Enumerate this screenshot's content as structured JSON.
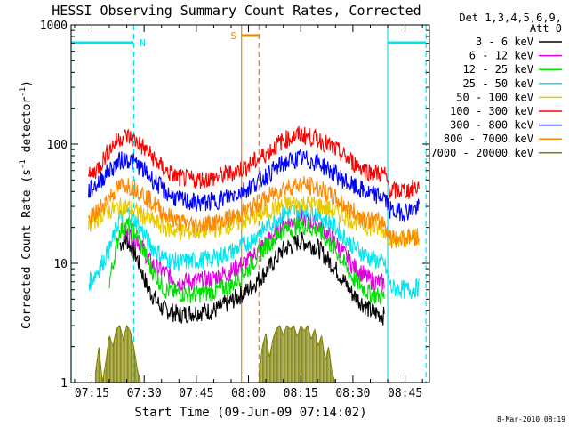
{
  "chart_data": {
    "type": "line",
    "title": "HESSI Observing Summary Count Rates, Corrected",
    "xlabel": "Start Time (09-Jun-09 07:14:02)",
    "ylabel_main": "Corrected Count Rate (s",
    "ylabel_sup1": "-1",
    "ylabel_mid": " detector",
    "ylabel_sup2": "-1",
    "ylabel_end": ")",
    "y_scale": "log",
    "ylim": [
      1,
      1000
    ],
    "xlim": [
      "07:09",
      "08:52"
    ],
    "x_ticks": [
      "07:15",
      "07:30",
      "07:45",
      "08:00",
      "08:15",
      "08:30",
      "08:45"
    ],
    "y_ticks": [
      "1",
      "10",
      "100",
      "1000"
    ],
    "legend_placement": "right",
    "legend_header": [
      "Det 1,3,4,5,6,9,",
      "Att 0"
    ],
    "footer_date": "8-Mar-2010 08:19",
    "markers": [
      {
        "label": "N",
        "solid": "07:09",
        "dashed": "07:27",
        "color": "#00e5ee"
      },
      {
        "label": "S",
        "solid": "07:58",
        "dashed": "08:03",
        "color": "#e08a00"
      },
      {
        "label": "",
        "solid": "08:40",
        "dashed": "08:51",
        "color": "#00e5ee"
      }
    ],
    "series": [
      {
        "name": "3 - 6 keV",
        "color": "#000000",
        "points": [
          [
            "07:23",
            14.5
          ],
          [
            "07:25",
            15.8
          ],
          [
            "07:28",
            11
          ],
          [
            "07:31",
            6.2
          ],
          [
            "07:35",
            4.2
          ],
          [
            "07:40",
            3.7
          ],
          [
            "07:45",
            3.9
          ],
          [
            "07:50",
            4.0
          ],
          [
            "07:55",
            4.8
          ],
          [
            "08:00",
            6.0
          ],
          [
            "08:05",
            8.5
          ],
          [
            "08:10",
            13
          ],
          [
            "08:15",
            15.5
          ],
          [
            "08:20",
            13.5
          ],
          [
            "08:25",
            9
          ],
          [
            "08:30",
            5.5
          ],
          [
            "08:35",
            4.0
          ],
          [
            "08:39",
            3.6
          ]
        ]
      },
      {
        "name": "6 - 12 keV",
        "color": "#e000e0",
        "points": [
          [
            "07:24",
            18
          ],
          [
            "07:28",
            16
          ],
          [
            "07:32",
            10
          ],
          [
            "07:40",
            7
          ],
          [
            "07:48",
            7.2
          ],
          [
            "07:55",
            8.6
          ],
          [
            "08:00",
            10.5
          ],
          [
            "08:05",
            15
          ],
          [
            "08:10",
            21
          ],
          [
            "08:15",
            24
          ],
          [
            "08:20",
            21
          ],
          [
            "08:25",
            15
          ],
          [
            "08:30",
            9.5
          ],
          [
            "08:35",
            7.2
          ],
          [
            "08:39",
            6.8
          ]
        ]
      },
      {
        "name": "12 - 25 keV",
        "color": "#00e000",
        "points": [
          [
            "07:20",
            7.0
          ],
          [
            "07:23",
            19
          ],
          [
            "07:25",
            21
          ],
          [
            "07:28",
            17
          ],
          [
            "07:32",
            9
          ],
          [
            "07:36",
            6.0
          ],
          [
            "07:40",
            5.6
          ],
          [
            "07:45",
            5.5
          ],
          [
            "07:50",
            5.8
          ],
          [
            "07:55",
            6.5
          ],
          [
            "08:00",
            9.0
          ],
          [
            "08:05",
            14
          ],
          [
            "08:10",
            19
          ],
          [
            "08:15",
            21
          ],
          [
            "08:20",
            19
          ],
          [
            "08:25",
            13
          ],
          [
            "08:30",
            7.5
          ],
          [
            "08:35",
            5.5
          ],
          [
            "08:39",
            5.2
          ]
        ]
      },
      {
        "name": "25 - 50 keV",
        "color": "#00e5ee",
        "points": [
          [
            "07:14",
            6.8
          ],
          [
            "07:17",
            9.0
          ],
          [
            "07:20",
            13
          ],
          [
            "07:23",
            24
          ],
          [
            "07:25",
            27
          ],
          [
            "07:28",
            22
          ],
          [
            "07:32",
            14
          ],
          [
            "07:36",
            11
          ],
          [
            "07:40",
            10.2
          ],
          [
            "07:45",
            10.5
          ],
          [
            "07:50",
            11
          ],
          [
            "07:55",
            12.5
          ],
          [
            "08:00",
            15
          ],
          [
            "08:05",
            20
          ],
          [
            "08:10",
            26
          ],
          [
            "08:15",
            28
          ],
          [
            "08:20",
            26
          ],
          [
            "08:25",
            20
          ],
          [
            "08:30",
            14
          ],
          [
            "08:35",
            11
          ],
          [
            "08:39",
            10
          ],
          [
            "08:41",
            6.2
          ],
          [
            "08:46",
            6.0
          ],
          [
            "08:49",
            6.3
          ]
        ]
      },
      {
        "name": "50 - 100 keV",
        "color": "#e8c800",
        "points": [
          [
            "07:14",
            21
          ],
          [
            "07:18",
            26
          ],
          [
            "07:22",
            29
          ],
          [
            "07:25",
            30
          ],
          [
            "07:28",
            27
          ],
          [
            "07:32",
            23
          ],
          [
            "07:36",
            20
          ],
          [
            "07:40",
            18.5
          ],
          [
            "07:45",
            18.5
          ],
          [
            "07:50",
            19.5
          ],
          [
            "07:55",
            21
          ],
          [
            "08:00",
            23.5
          ],
          [
            "08:05",
            27
          ],
          [
            "08:10",
            31
          ],
          [
            "08:15",
            32
          ],
          [
            "08:20",
            31
          ],
          [
            "08:25",
            27
          ],
          [
            "08:30",
            23
          ],
          [
            "08:35",
            20
          ],
          [
            "08:39",
            19
          ],
          [
            "08:41",
            16
          ],
          [
            "08:46",
            16.5
          ],
          [
            "08:49",
            17
          ]
        ]
      },
      {
        "name": "100 - 300 keV",
        "color": "#ff0000",
        "points": [
          [
            "07:14",
            52
          ],
          [
            "07:17",
            65
          ],
          [
            "07:20",
            90
          ],
          [
            "07:23",
            113
          ],
          [
            "07:25",
            117
          ],
          [
            "07:28",
            105
          ],
          [
            "07:32",
            80
          ],
          [
            "07:36",
            60
          ],
          [
            "07:40",
            52
          ],
          [
            "07:45",
            50
          ],
          [
            "07:50",
            52
          ],
          [
            "07:55",
            57
          ],
          [
            "08:00",
            66
          ],
          [
            "08:05",
            83
          ],
          [
            "08:10",
            108
          ],
          [
            "08:15",
            120
          ],
          [
            "08:20",
            110
          ],
          [
            "08:25",
            90
          ],
          [
            "08:30",
            70
          ],
          [
            "08:35",
            58
          ],
          [
            "08:39",
            56
          ],
          [
            "08:41",
            40
          ],
          [
            "08:46",
            41
          ],
          [
            "08:49",
            44
          ]
        ]
      },
      {
        "name": "300 - 800 keV",
        "color": "#0000ff",
        "points": [
          [
            "07:14",
            40
          ],
          [
            "07:17",
            48
          ],
          [
            "07:20",
            60
          ],
          [
            "07:23",
            72
          ],
          [
            "07:25",
            75
          ],
          [
            "07:28",
            68
          ],
          [
            "07:32",
            52
          ],
          [
            "07:36",
            40
          ],
          [
            "07:40",
            34
          ],
          [
            "07:45",
            32
          ],
          [
            "07:50",
            33
          ],
          [
            "07:55",
            37
          ],
          [
            "08:00",
            43
          ],
          [
            "08:05",
            54
          ],
          [
            "08:10",
            69
          ],
          [
            "08:15",
            76
          ],
          [
            "08:20",
            70
          ],
          [
            "08:25",
            56
          ],
          [
            "08:30",
            44
          ],
          [
            "08:35",
            38
          ],
          [
            "08:39",
            36
          ],
          [
            "08:41",
            27
          ],
          [
            "08:46",
            27.5
          ],
          [
            "08:49",
            29
          ]
        ]
      },
      {
        "name": "800 - 7000 keV",
        "color": "#ff8800",
        "points": [
          [
            "07:14",
            23
          ],
          [
            "07:17",
            28
          ],
          [
            "07:20",
            36
          ],
          [
            "07:23",
            44
          ],
          [
            "07:25",
            46
          ],
          [
            "07:28",
            42
          ],
          [
            "07:32",
            33
          ],
          [
            "07:36",
            26
          ],
          [
            "07:40",
            22
          ],
          [
            "07:45",
            21
          ],
          [
            "07:50",
            22
          ],
          [
            "07:55",
            24
          ],
          [
            "08:00",
            28
          ],
          [
            "08:05",
            35
          ],
          [
            "08:10",
            43
          ],
          [
            "08:15",
            46
          ],
          [
            "08:20",
            43
          ],
          [
            "08:25",
            35
          ],
          [
            "08:30",
            27
          ],
          [
            "08:35",
            23
          ],
          [
            "08:39",
            22
          ],
          [
            "08:41",
            16
          ],
          [
            "08:46",
            16.5
          ],
          [
            "08:49",
            17
          ]
        ]
      },
      {
        "name": "7000 - 20000 keV",
        "color": "#808000",
        "points": [
          [
            "07:16",
            1.2
          ],
          [
            "07:17",
            2.0
          ],
          [
            "07:18",
            1.0
          ],
          [
            "07:19",
            1.5
          ],
          [
            "07:20",
            2.5
          ],
          [
            "07:21",
            2.0
          ],
          [
            "07:22",
            2.8
          ],
          [
            "07:23",
            3.0
          ],
          [
            "07:24",
            2.3
          ],
          [
            "07:25",
            3.0
          ],
          [
            "07:26",
            2.7
          ],
          [
            "07:27",
            2.0
          ],
          [
            "07:28",
            1.3
          ],
          [
            "07:29",
            1.0
          ],
          [
            "08:03",
            1.2
          ],
          [
            "08:04",
            2.0
          ],
          [
            "08:05",
            2.6
          ],
          [
            "08:06",
            1.6
          ],
          [
            "08:07",
            2.3
          ],
          [
            "08:08",
            2.8
          ],
          [
            "08:09",
            3.0
          ],
          [
            "08:10",
            2.5
          ],
          [
            "08:11",
            3.0
          ],
          [
            "08:12",
            2.8
          ],
          [
            "08:13",
            3.0
          ],
          [
            "08:14",
            2.4
          ],
          [
            "08:15",
            3.0
          ],
          [
            "08:16",
            2.7
          ],
          [
            "08:17",
            3.0
          ],
          [
            "08:18",
            2.3
          ],
          [
            "08:19",
            2.8
          ],
          [
            "08:20",
            2.0
          ],
          [
            "08:21",
            2.5
          ],
          [
            "08:22",
            1.5
          ],
          [
            "08:23",
            2.0
          ],
          [
            "08:24",
            1.2
          ],
          [
            "08:25",
            1.0
          ]
        ]
      }
    ]
  }
}
